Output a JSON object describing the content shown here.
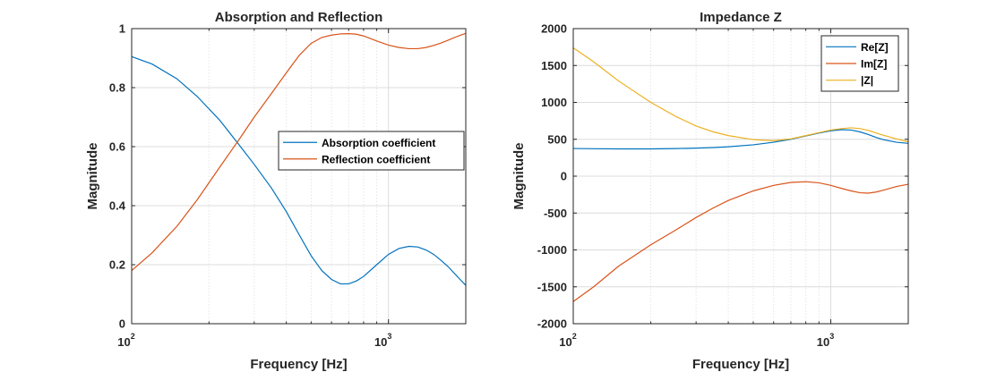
{
  "chart_data": [
    {
      "type": "line",
      "title": "Absorption and Reflection",
      "xlabel": "Frequency [Hz]",
      "ylabel": "Magnitude",
      "xscale": "log",
      "xlim": [
        100,
        2000
      ],
      "ylim": [
        0,
        1
      ],
      "grid": true,
      "legend_position": "right",
      "x_ticks": [
        {
          "value": 100,
          "base": "10",
          "exp": "2"
        },
        {
          "value": 1000,
          "base": "10",
          "exp": "3"
        }
      ],
      "y_ticks": [
        {
          "value": 0,
          "label": "0"
        },
        {
          "value": 0.2,
          "label": "0.2"
        },
        {
          "value": 0.4,
          "label": "0.4"
        },
        {
          "value": 0.6,
          "label": "0.6"
        },
        {
          "value": 0.8,
          "label": "0.8"
        },
        {
          "value": 1,
          "label": "1"
        }
      ],
      "series": [
        {
          "name": "Absorption coefficient",
          "color": "#0072BD",
          "x": [
            100,
            120,
            150,
            180,
            220,
            260,
            300,
            350,
            400,
            450,
            500,
            550,
            600,
            650,
            700,
            750,
            800,
            900,
            1000,
            1100,
            1200,
            1300,
            1400,
            1500,
            1600,
            1700,
            1800,
            1900,
            2000
          ],
          "y": [
            0.905,
            0.88,
            0.83,
            0.77,
            0.69,
            0.61,
            0.54,
            0.46,
            0.38,
            0.3,
            0.23,
            0.18,
            0.15,
            0.135,
            0.135,
            0.145,
            0.16,
            0.2,
            0.235,
            0.255,
            0.262,
            0.26,
            0.25,
            0.235,
            0.215,
            0.195,
            0.172,
            0.15,
            0.13
          ]
        },
        {
          "name": "Reflection coefficient",
          "color": "#D95319",
          "x": [
            100,
            120,
            150,
            180,
            220,
            260,
            300,
            350,
            400,
            450,
            500,
            550,
            600,
            650,
            700,
            750,
            800,
            900,
            1000,
            1100,
            1200,
            1300,
            1400,
            1500,
            1600,
            1700,
            1800,
            1900,
            2000
          ],
          "y": [
            0.18,
            0.24,
            0.33,
            0.42,
            0.53,
            0.62,
            0.7,
            0.78,
            0.85,
            0.91,
            0.95,
            0.97,
            0.978,
            0.982,
            0.983,
            0.981,
            0.975,
            0.958,
            0.944,
            0.936,
            0.932,
            0.932,
            0.936,
            0.943,
            0.951,
            0.96,
            0.969,
            0.977,
            0.984
          ]
        }
      ]
    },
    {
      "type": "line",
      "title": "Impedance Z",
      "xlabel": "Frequency [Hz]",
      "ylabel": "Magnitude",
      "xscale": "log",
      "xlim": [
        100,
        2000
      ],
      "ylim": [
        -2000,
        2000
      ],
      "grid": true,
      "legend_position": "top-right",
      "x_ticks": [
        {
          "value": 100,
          "base": "10",
          "exp": "2"
        },
        {
          "value": 1000,
          "base": "10",
          "exp": "3"
        }
      ],
      "y_ticks": [
        {
          "value": -2000,
          "label": "-2000"
        },
        {
          "value": -1500,
          "label": "-1500"
        },
        {
          "value": -1000,
          "label": "-1000"
        },
        {
          "value": -500,
          "label": "-500"
        },
        {
          "value": 0,
          "label": "0"
        },
        {
          "value": 500,
          "label": "500"
        },
        {
          "value": 1000,
          "label": "1000"
        },
        {
          "value": 1500,
          "label": "1500"
        },
        {
          "value": 2000,
          "label": "2000"
        }
      ],
      "series": [
        {
          "name": "Re[Z]",
          "color": "#0072BD",
          "x": [
            100,
            120,
            150,
            200,
            250,
            300,
            350,
            400,
            500,
            600,
            700,
            800,
            900,
            1000,
            1100,
            1200,
            1300,
            1400,
            1500,
            1600,
            1800,
            2000
          ],
          "y": [
            375,
            372,
            370,
            370,
            374,
            380,
            388,
            398,
            425,
            460,
            500,
            545,
            585,
            615,
            630,
            625,
            600,
            565,
            525,
            495,
            460,
            445
          ]
        },
        {
          "name": "Im[Z]",
          "color": "#D95319",
          "x": [
            100,
            120,
            150,
            200,
            250,
            300,
            350,
            400,
            500,
            600,
            700,
            800,
            900,
            1000,
            1100,
            1200,
            1300,
            1400,
            1500,
            1600,
            1800,
            2000
          ],
          "y": [
            -1700,
            -1500,
            -1220,
            -930,
            -730,
            -560,
            -430,
            -330,
            -200,
            -125,
            -85,
            -75,
            -90,
            -125,
            -165,
            -200,
            -225,
            -230,
            -215,
            -190,
            -140,
            -110
          ]
        },
        {
          "name": "|Z|",
          "color": "#EDB120",
          "x": [
            100,
            120,
            150,
            200,
            250,
            300,
            350,
            400,
            500,
            600,
            700,
            800,
            900,
            1000,
            1100,
            1200,
            1300,
            1400,
            1500,
            1600,
            1800,
            2000
          ],
          "y": [
            1740,
            1550,
            1290,
            1000,
            810,
            680,
            600,
            550,
            495,
            480,
            505,
            550,
            590,
            625,
            645,
            655,
            645,
            620,
            585,
            555,
            505,
            465
          ]
        }
      ]
    }
  ]
}
